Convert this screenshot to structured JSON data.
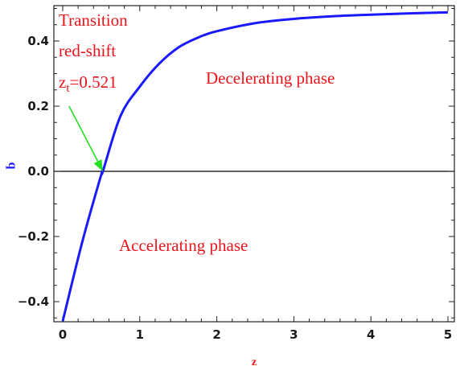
{
  "chart_data": {
    "type": "line",
    "title": "",
    "xlabel": "z",
    "ylabel": "q",
    "xlim": [
      0,
      5.1
    ],
    "ylim": [
      -0.47,
      0.51
    ],
    "x_ticks": [
      0,
      1,
      2,
      3,
      4,
      5
    ],
    "y_ticks": [
      -0.4,
      -0.2,
      0.0,
      0.2,
      0.4
    ],
    "x_tick_labels": [
      "0",
      "1",
      "2",
      "3",
      "4",
      "5"
    ],
    "y_tick_labels": [
      "−0.4",
      "−0.2",
      "0.0",
      "0.2",
      "0.4"
    ],
    "grid": false,
    "series": [
      {
        "color": "#1a1aff",
        "x": [
          0,
          0.25,
          0.5,
          0.521,
          0.75,
          1.0,
          1.25,
          1.5,
          1.75,
          2.0,
          2.5,
          3.0,
          3.5,
          4.0,
          4.5,
          5.0
        ],
        "y": [
          -0.46,
          -0.22,
          -0.01,
          0.0,
          0.17,
          0.26,
          0.33,
          0.38,
          0.41,
          0.43,
          0.455,
          0.468,
          0.476,
          0.481,
          0.485,
          0.488
        ]
      }
    ],
    "zero_line": 0.0,
    "annotations": [
      {
        "text": "Transition",
        "color": "#e8141c"
      },
      {
        "text": "red-shift",
        "color": "#e8141c"
      },
      {
        "text_main": "z",
        "text_sub": "t",
        "text_rest": "=0.521",
        "color": "#e8141c"
      },
      {
        "text": "Decelerating phase",
        "color": "#e8141c"
      },
      {
        "text": "Accelerating phase",
        "color": "#e8141c"
      }
    ],
    "arrow": {
      "color": "#22e022",
      "target_x": 0.521,
      "target_y": 0.0
    }
  }
}
